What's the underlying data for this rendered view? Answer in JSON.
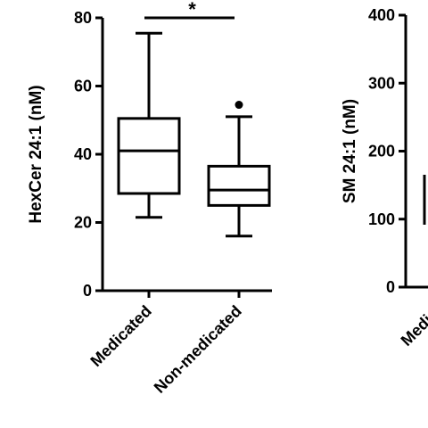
{
  "chart_data": [
    {
      "type": "box",
      "ylabel": "HexCer 24:1 (nM)",
      "ylim": [
        0,
        80
      ],
      "yticks": [
        0,
        20,
        40,
        60,
        80
      ],
      "categories": [
        "Medicated",
        "Non-medicated"
      ],
      "boxes": [
        {
          "category": "Medicated",
          "min": 21.5,
          "q1": 28.5,
          "median": 41,
          "q3": 50.5,
          "max": 75.5,
          "outliers": []
        },
        {
          "category": "Non-medicated",
          "min": 16,
          "q1": 25,
          "median": 29.5,
          "q3": 36.5,
          "max": 51,
          "outliers": [
            54.5
          ]
        }
      ],
      "annotations": [
        {
          "type": "significance",
          "between": [
            "Medicated",
            "Non-medicated"
          ],
          "label": "*"
        }
      ]
    },
    {
      "type": "box",
      "ylabel": "SM 24:1 (nM)",
      "ylim": [
        0,
        400
      ],
      "yticks": [
        0,
        100,
        200,
        300,
        400
      ],
      "categories": [
        "Medica"
      ],
      "partial": true
    }
  ]
}
